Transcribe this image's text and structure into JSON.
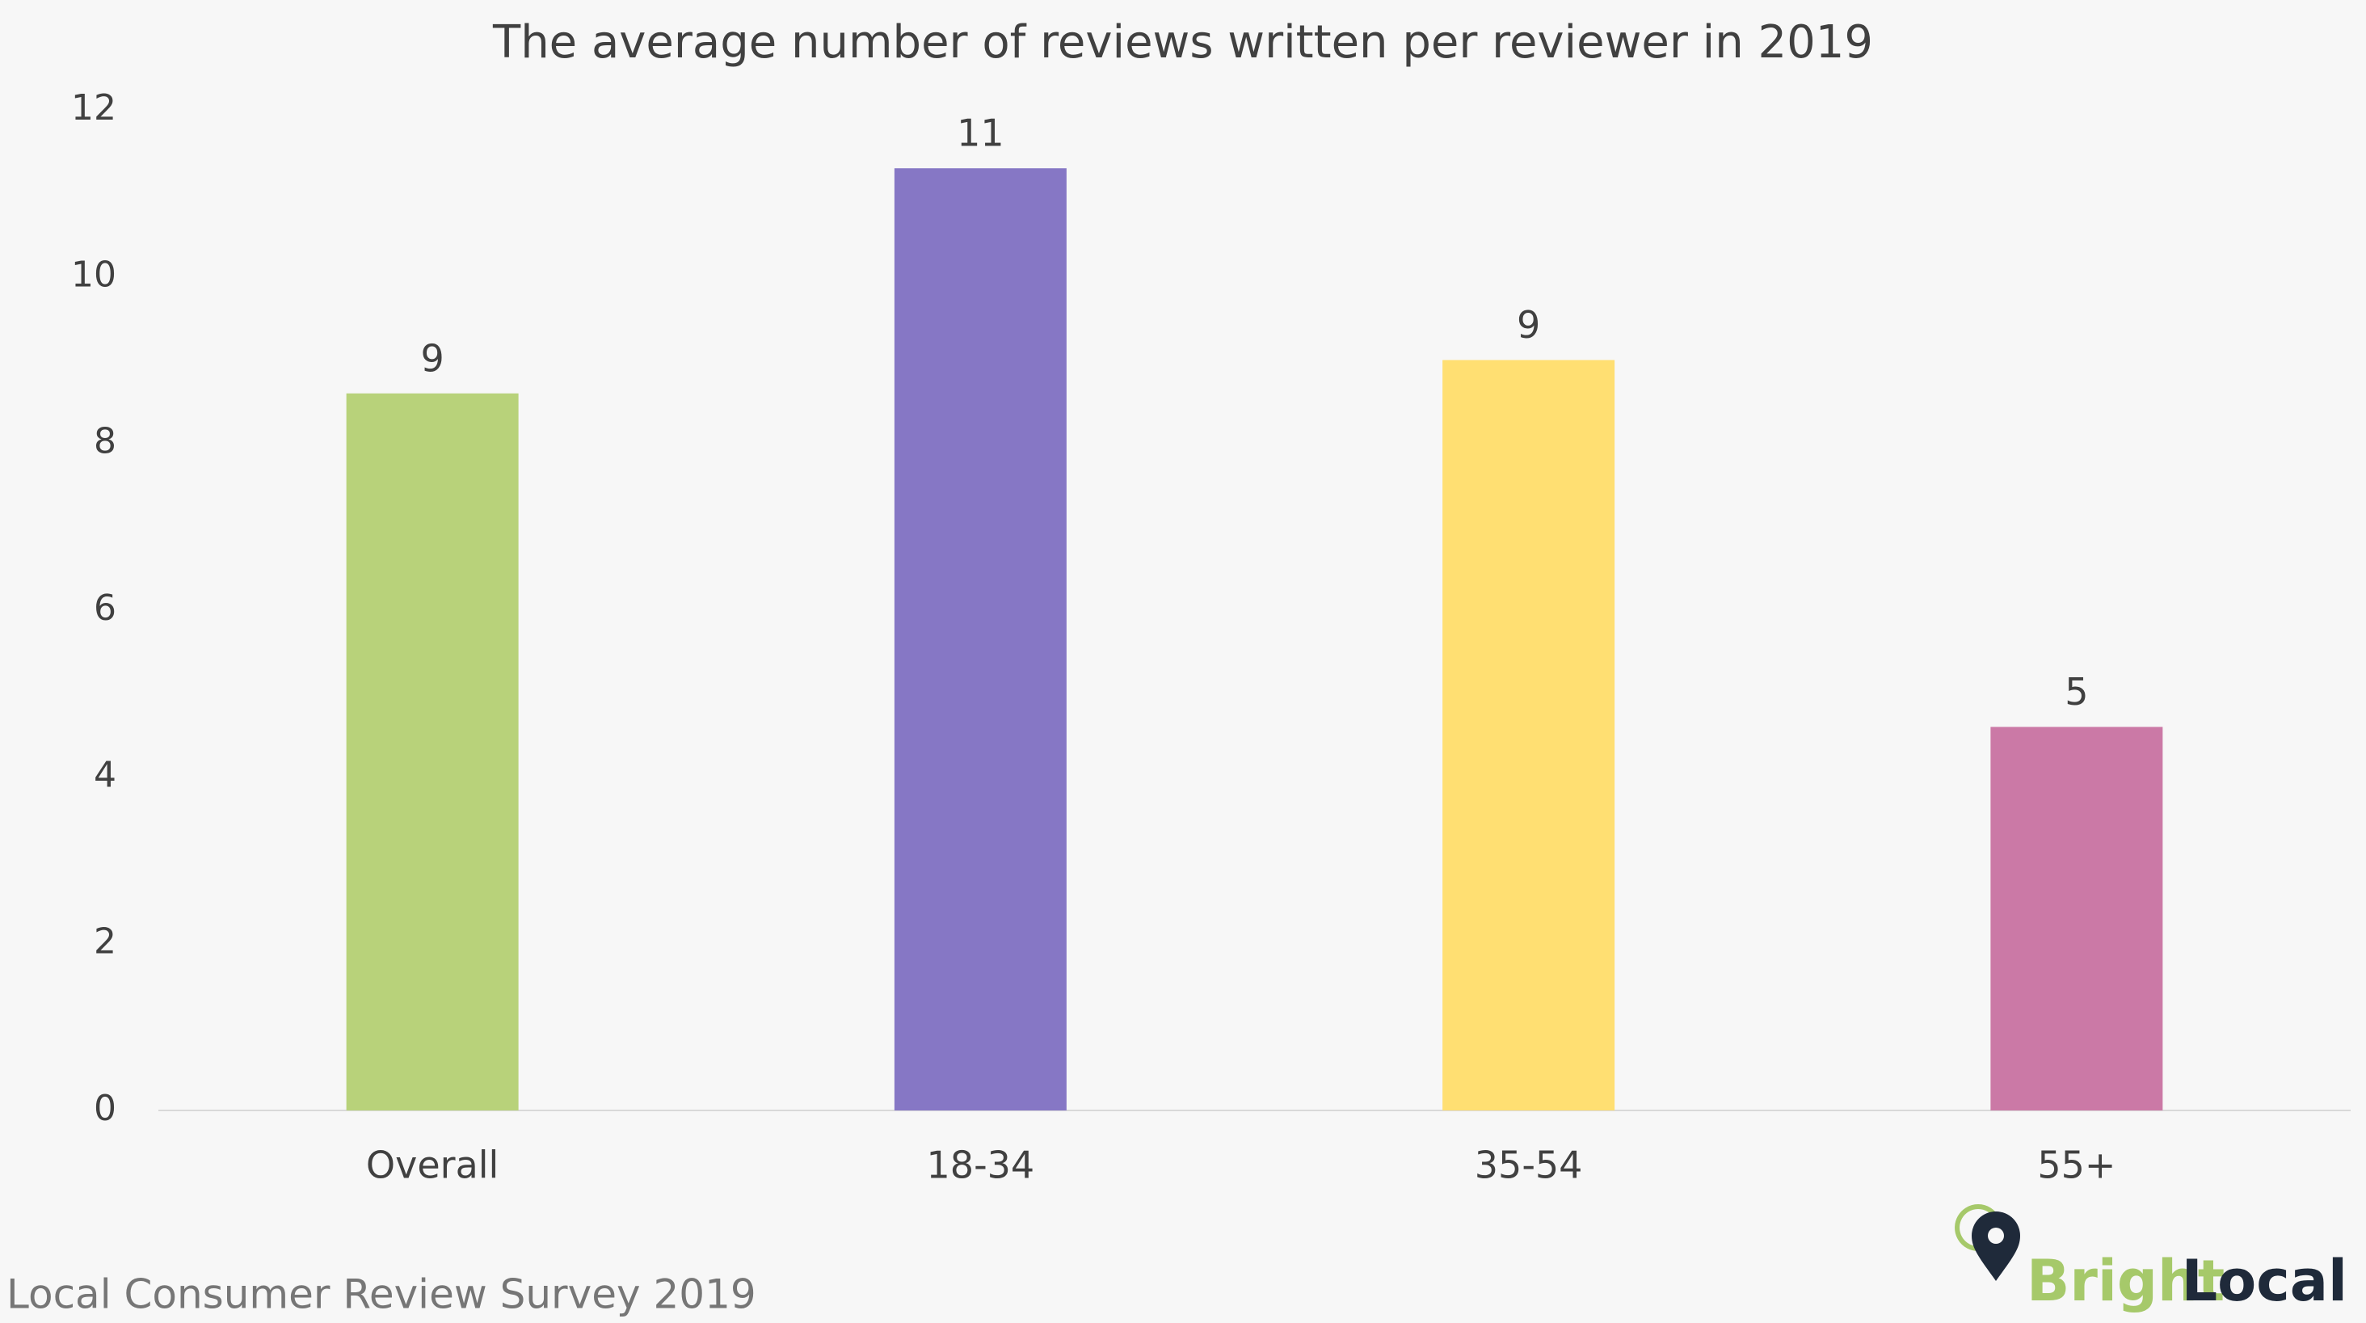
{
  "chart_data": {
    "type": "bar",
    "title": "The average number of reviews written per reviewer in 2019",
    "categories": [
      "Overall",
      "18-34",
      "35-54",
      "55+"
    ],
    "values": [
      8.6,
      11.3,
      9.0,
      4.6
    ],
    "value_labels": [
      "9",
      "11",
      "9",
      "5"
    ],
    "colors": [
      "#b8d27a",
      "#8677c5",
      "#ffdf72",
      "#cb79a6"
    ],
    "ylim": [
      0,
      12
    ],
    "yticks": [
      0,
      2,
      4,
      6,
      8,
      10,
      12
    ],
    "grid": false
  },
  "footer": {
    "source": "Local Consumer Review Survey 2019",
    "brand_first": "Bright",
    "brand_second": "Local"
  }
}
